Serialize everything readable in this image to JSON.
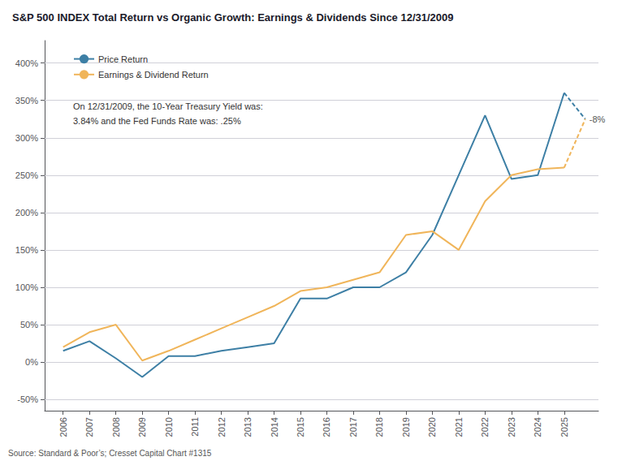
{
  "chart_data": {
    "type": "line",
    "title": "S&P 500 INDEX Total Return vs Organic Growth: Earnings & Dividends Since 12/31/2009",
    "annotations": [
      "On 12/31/2009, the 10-Year Treasury Yield was:\n3.84% and the Fed Funds Rate was: .25%",
      "-8%"
    ],
    "source": "Source: Standard & Poor’s; Cresset Capital Chart #1315",
    "series": [
      {
        "name": "Price Return",
        "color": "#3d7fa5",
        "x": [
          2006,
          2007,
          2008,
          2009,
          2010,
          2011,
          2012,
          2013,
          2014,
          2015,
          2016,
          2017,
          2018,
          2019,
          2020,
          2021,
          2022,
          2023,
          2024,
          2025
        ],
        "values": [
          15,
          28,
          5,
          -20,
          8,
          8,
          15,
          20,
          25,
          85,
          85,
          100,
          100,
          120,
          170,
          250,
          330,
          245,
          250,
          360
        ]
      },
      {
        "name": "Earnings & Dividend Return",
        "color": "#f0b55a",
        "x": [
          2006,
          2007,
          2008,
          2009,
          2010,
          2011,
          2012,
          2013,
          2014,
          2015,
          2016,
          2017,
          2018,
          2019,
          2020,
          2021,
          2022,
          2023,
          2024,
          2025
        ],
        "values": [
          20,
          40,
          50,
          2,
          15,
          30,
          45,
          60,
          75,
          95,
          100,
          110,
          120,
          170,
          175,
          150,
          215,
          250,
          258,
          260
        ]
      },
      {
        "name": "Price Return",
        "color": "#3d7fa5",
        "line_style": "dashed",
        "x": [
          2025,
          2025.8
        ],
        "values": [
          360,
          325
        ]
      },
      {
        "name": "Earnings & Dividend Return",
        "color": "#f0b55a",
        "line_style": "dashed",
        "x": [
          2025,
          2025.8
        ],
        "values": [
          260,
          325
        ]
      }
    ],
    "xlim": [
      2005.3,
      2026.3
    ],
    "xticks": [
      2006,
      2007,
      2008,
      2009,
      2010,
      2011,
      2012,
      2013,
      2014,
      2015,
      2016,
      2017,
      2018,
      2019,
      2020,
      2021,
      2022,
      2023,
      2024,
      2025
    ],
    "ylim": [
      -65,
      430
    ],
    "yticks": [
      {
        "value": -50,
        "label": "-50%"
      },
      {
        "value": 0,
        "label": "0%"
      },
      {
        "value": 50,
        "label": "50%"
      },
      {
        "value": 100,
        "label": "100%"
      },
      {
        "value": 150,
        "label": "150%"
      },
      {
        "value": 200,
        "label": "200%"
      },
      {
        "value": 250,
        "label": "250%"
      },
      {
        "value": 300,
        "label": "300%"
      },
      {
        "value": 350,
        "label": "350%"
      },
      {
        "value": 400,
        "label": "400%"
      }
    ],
    "grid": true,
    "legend": "upper left"
  }
}
